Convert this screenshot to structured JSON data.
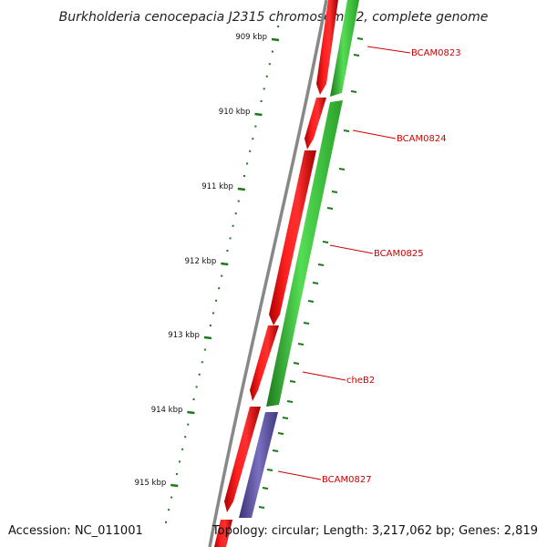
{
  "title": "Burkholderia cenocepacia J2315 chromosome 2, complete genome",
  "footer": {
    "accession": "Accession: NC_011001",
    "info": "Topology: circular; Length: 3,217,062 bp; Genes: 2,819"
  },
  "colors": {
    "background": "#ffffff",
    "backbone": "#888888",
    "gene_forward_track": "#e41a1c",
    "gene_reverse_track": "#33bb33",
    "gene_other": "#5a4f9e",
    "ticks": "#1a7a1a",
    "labels": "#cc0000"
  },
  "ruler": {
    "unit": "kbp",
    "ticks": [
      "909 kbp",
      "910 kbp",
      "911 kbp",
      "912 kbp",
      "913 kbp",
      "914 kbp",
      "915 kbp"
    ]
  },
  "gene_labels": [
    "BCAM0823",
    "BCAM0824",
    "BCAM0825",
    "cheB2",
    "BCAM0827"
  ]
}
